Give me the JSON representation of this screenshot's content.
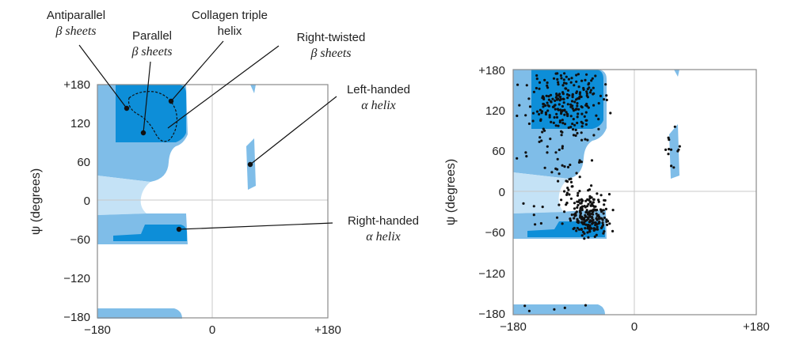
{
  "panel_left": {
    "y_axis_label": "ψ (degrees)",
    "x_ticks": [
      "−180",
      "0",
      "+180"
    ],
    "y_ticks": [
      "+180",
      "120",
      "60",
      "0",
      "−60",
      "−120",
      "−180"
    ],
    "annotations": {
      "antiparallel": [
        "Antiparallel",
        "β sheets"
      ],
      "parallel": [
        "Parallel",
        "β sheets"
      ],
      "collagen": [
        "Collagen triple",
        "helix"
      ],
      "right_twisted": [
        "Right-twisted",
        "β sheets"
      ],
      "left_handed": [
        "Left-handed",
        "α helix"
      ],
      "right_handed": [
        "Right-handed",
        "α helix"
      ]
    }
  },
  "panel_right": {
    "y_axis_label": "ψ (degrees)",
    "x_ticks": [
      "−180",
      "0",
      "+180"
    ],
    "y_ticks": [
      "+180",
      "120",
      "60",
      "0",
      "−60",
      "−120",
      "−180"
    ]
  },
  "colors": {
    "allowed_region": "#7fbde8",
    "favored_region": "#0d8ed8",
    "bridge_region": "#c4e2f6",
    "frame": "#8a8a8a",
    "points": "#111111"
  }
}
